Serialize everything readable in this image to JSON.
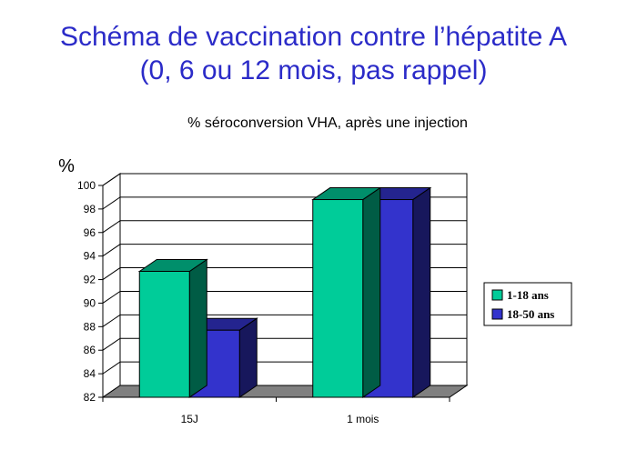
{
  "slide": {
    "title_line1": "Schéma de vaccination contre l’hépatite A",
    "title_line2": "(0, 6 ou 12 mois, pas rappel)"
  },
  "chart_data": {
    "type": "bar",
    "title": "% séroconversion VHA, après une injection",
    "ylabel": "%",
    "xlabel": "",
    "categories": [
      "15J",
      "1 mois"
    ],
    "series": [
      {
        "name": "1-18 ans",
        "values": [
          92.7,
          98.8
        ],
        "color": "#00cc99"
      },
      {
        "name": "18-50 ans",
        "values": [
          87.7,
          98.8
        ],
        "color": "#3333cc"
      }
    ],
    "ylim": [
      82,
      100
    ],
    "yticks": [
      "82",
      "84",
      "86",
      "88",
      "90",
      "92",
      "94",
      "96",
      "98",
      "100"
    ],
    "grid": true,
    "legend_position": "right",
    "style": "3d"
  }
}
